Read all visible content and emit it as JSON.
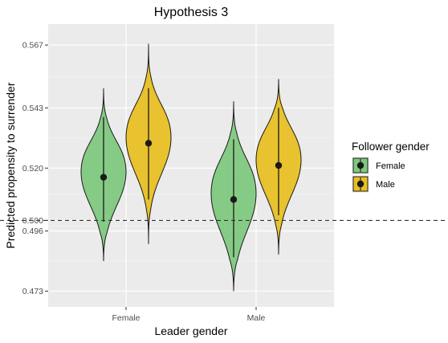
{
  "chart_data": {
    "type": "violin",
    "title": "Hypothesis 3",
    "xlabel": "Leader gender",
    "ylabel": "Predicted propensity to surrender",
    "categories": [
      "Female",
      "Male"
    ],
    "ylim": [
      0.467,
      0.575
    ],
    "yticks": [
      {
        "value": 0.473,
        "label": "0.473"
      },
      {
        "value": 0.496,
        "label": "0.496"
      },
      {
        "value": 0.5,
        "label": "0.500"
      },
      {
        "value": 0.52,
        "label": "0.520"
      },
      {
        "value": 0.543,
        "label": "0.543"
      },
      {
        "value": 0.567,
        "label": "0.567"
      }
    ],
    "reference_line": {
      "value": 0.5,
      "style": "dashed"
    },
    "grid": true,
    "legend": {
      "title": "Follower gender",
      "position": "right",
      "entries": [
        {
          "name": "Female",
          "color": "#7fc97f"
        },
        {
          "name": "Male",
          "color": "#e8c025"
        }
      ]
    },
    "series": [
      {
        "name": "Female",
        "color": "#7fc97f",
        "points": [
          {
            "category": "Female",
            "mean": 0.5165,
            "lower": 0.4995,
            "upper": 0.5395,
            "min": 0.4845,
            "max": 0.5505
          },
          {
            "category": "Male",
            "mean": 0.508,
            "lower": 0.486,
            "upper": 0.531,
            "min": 0.473,
            "max": 0.5455
          }
        ]
      },
      {
        "name": "Male",
        "color": "#e8c025",
        "points": [
          {
            "category": "Female",
            "mean": 0.5295,
            "lower": 0.508,
            "upper": 0.5505,
            "min": 0.491,
            "max": 0.5675
          },
          {
            "category": "Male",
            "mean": 0.521,
            "lower": 0.502,
            "upper": 0.543,
            "min": 0.487,
            "max": 0.554
          }
        ]
      }
    ]
  }
}
